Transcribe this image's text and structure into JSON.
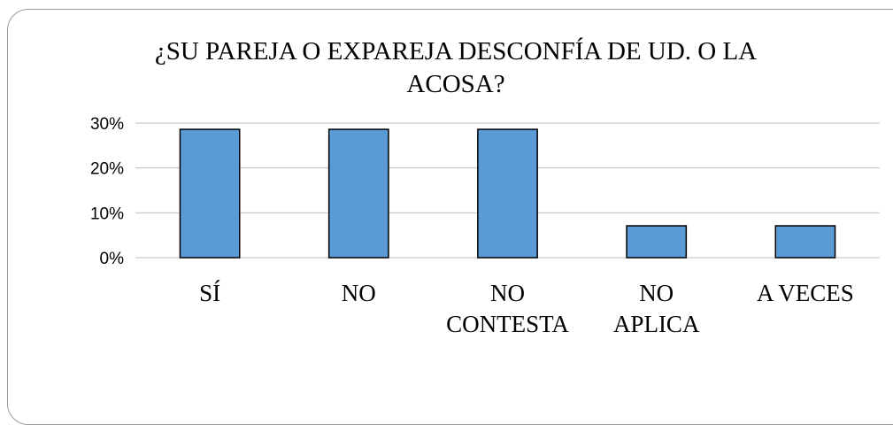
{
  "chart_data": {
    "type": "bar",
    "title": "¿SU PAREJA O EXPAREJA DESCONFÍA DE UD. O LA ACOSA?",
    "title_lines": [
      "¿SU PAREJA O EXPAREJA DESCONFÍA DE UD. O LA",
      "ACOSA?"
    ],
    "categories": [
      "SÍ",
      "NO",
      "NO CONTESTA",
      "NO APLICA",
      "A VECES"
    ],
    "category_lines": [
      [
        "SÍ"
      ],
      [
        "NO"
      ],
      [
        "NO",
        "CONTESTA"
      ],
      [
        "NO",
        "APLICA"
      ],
      [
        "A VECES"
      ]
    ],
    "values": [
      0.286,
      0.286,
      0.286,
      0.071,
      0.071
    ],
    "ylim": [
      0,
      0.3
    ],
    "yticks": [
      0,
      0.1,
      0.2,
      0.3
    ],
    "ytick_labels": [
      "0%",
      "10%",
      "20%",
      "30%"
    ],
    "xlabel": "",
    "ylabel": "",
    "grid": true,
    "legend": "none",
    "bar_color": "#5b9bd5",
    "bar_edge_color": "#000000",
    "grid_color": "#bfbfbf"
  }
}
